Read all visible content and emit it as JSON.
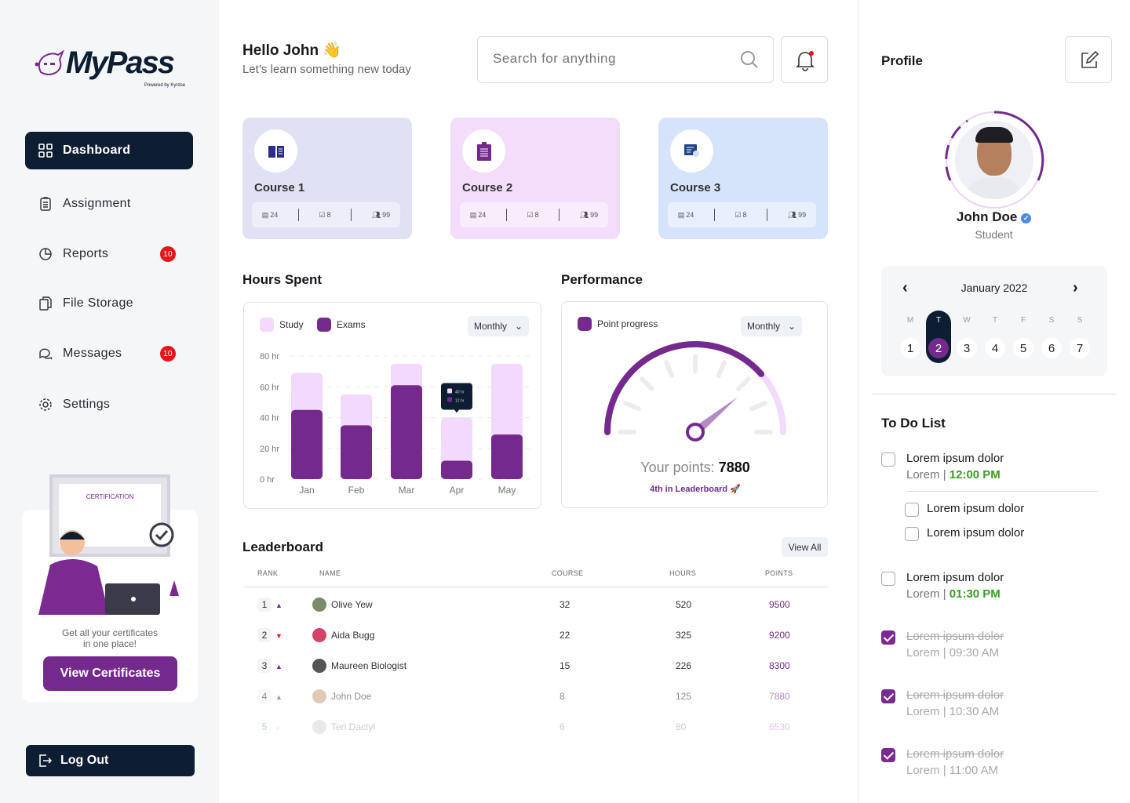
{
  "brand": {
    "name": "MyPass",
    "powered": "Powered by Kyrdse"
  },
  "sidebar": {
    "items": [
      {
        "label": "Dashboard",
        "icon": "grid-icon",
        "active": true
      },
      {
        "label": "Assignment",
        "icon": "clipboard-icon"
      },
      {
        "label": "Reports",
        "icon": "pie-chart-icon",
        "badge": "10"
      },
      {
        "label": "File Storage",
        "icon": "files-icon"
      },
      {
        "label": "Messages",
        "icon": "chat-icon",
        "badge": "10"
      },
      {
        "label": "Settings",
        "icon": "gear-icon"
      }
    ],
    "promo": {
      "cert_title": "CERTIFICATION",
      "text1": "Get all your certificates",
      "text2": "in one place!",
      "button": "View Certificates"
    },
    "logout": "Log Out"
  },
  "header": {
    "greeting": "Hello John",
    "wave": "👋",
    "subtitle": "Let’s learn something new today",
    "search_placeholder": "Search for anything"
  },
  "courses": [
    {
      "title": "Course 1",
      "lessons": "24",
      "assignments": "8",
      "students": "99",
      "bg": "#e1e1f6",
      "icon": "book-icon"
    },
    {
      "title": "Course 2",
      "lessons": "24",
      "assignments": "8",
      "students": "99",
      "bg": "#f4dcfb",
      "icon": "clipboard-icon"
    },
    {
      "title": "Course 3",
      "lessons": "24",
      "assignments": "8",
      "students": "99",
      "bg": "#d6e4fb",
      "icon": "certificate-icon"
    }
  ],
  "hours": {
    "title": "Hours Spent",
    "period": "Monthly"
  },
  "chart_data": {
    "type": "bar",
    "categories": [
      "Jan",
      "Feb",
      "Mar",
      "Apr",
      "May"
    ],
    "series": [
      {
        "name": "Study",
        "values": [
          69,
          55,
          75,
          40,
          75
        ],
        "color": "#f3d9fc"
      },
      {
        "name": "Exams",
        "values": [
          45,
          35,
          61,
          12,
          29
        ],
        "color": "#742a8c"
      }
    ],
    "yticks": [
      "0 hr",
      "20 hr",
      "40 hr",
      "60 hr",
      "80 hr"
    ],
    "ylim": [
      0,
      80
    ],
    "grid": true,
    "legend": "top-left",
    "tooltip": {
      "category": "Apr",
      "lines": [
        "40 hr",
        "12 hr"
      ]
    }
  },
  "performance": {
    "title": "Performance",
    "legend": "Point progress",
    "period": "Monthly",
    "points_label": "Your points:",
    "points": "7880",
    "rank_text": "4th in Leaderboard 🚀",
    "progress": 0.77
  },
  "leaderboard": {
    "title": "Leaderboard",
    "view_all": "View All",
    "columns": [
      "RANK",
      "NAME",
      "COURSE",
      "HOURS",
      "POINTS"
    ],
    "rows": [
      {
        "rank": "1",
        "trend": "up",
        "name": "Olive Yew",
        "course": "32",
        "hours": "520",
        "points": "9500"
      },
      {
        "rank": "2",
        "trend": "down",
        "name": "Aida Bugg",
        "course": "22",
        "hours": "325",
        "points": "9200"
      },
      {
        "rank": "3",
        "trend": "up",
        "name": "Maureen Biologist",
        "course": "15",
        "hours": "226",
        "points": "8300"
      },
      {
        "rank": "4",
        "trend": "up",
        "name": "John Doe",
        "course": "8",
        "hours": "125",
        "points": "7880"
      },
      {
        "rank": "5",
        "trend": "same",
        "name": "Teri Dactyl",
        "course": "6",
        "hours": "80",
        "points": "6530"
      }
    ]
  },
  "profile": {
    "title": "Profile",
    "name": "John Doe",
    "role": "Student"
  },
  "calendar": {
    "month": "January 2022",
    "weekdays": [
      "M",
      "T",
      "W",
      "T",
      "F",
      "S",
      "S"
    ],
    "days": [
      "1",
      "2",
      "3",
      "4",
      "5",
      "6",
      "7"
    ],
    "selected": "2"
  },
  "todo": {
    "title": "To Do List",
    "items": [
      {
        "title": "Lorem ipsum dolor",
        "sub": "Lorem",
        "time": "12:00 PM",
        "done": false
      },
      {
        "title": "Lorem ipsum dolor",
        "done": false
      },
      {
        "title": "Lorem ipsum dolor",
        "done": false
      },
      {
        "title": "Lorem ipsum dolor",
        "sub": "Lorem",
        "time": "01:30 PM",
        "done": false
      },
      {
        "title": "Lorem ipsum dolor",
        "sub": "Lorem",
        "time": "09:30 AM",
        "done": true
      },
      {
        "title": "Lorem ipsum dolor",
        "sub": "Lorem",
        "time": "10:30 AM",
        "done": true
      },
      {
        "title": "Lorem ipsum dolor",
        "sub": "Lorem",
        "time": "11:00 AM",
        "done": true
      }
    ]
  }
}
